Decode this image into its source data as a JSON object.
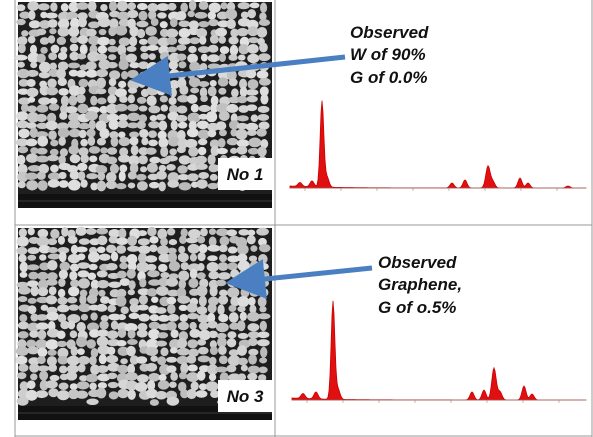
{
  "panels": [
    {
      "label": "No 1",
      "annotation": [
        "Observed",
        "W of 90%",
        "G of 0.0%"
      ]
    },
    {
      "label": "No 3",
      "annotation": [
        "Observed",
        "Graphene,",
        "G of o.5%"
      ]
    }
  ]
}
